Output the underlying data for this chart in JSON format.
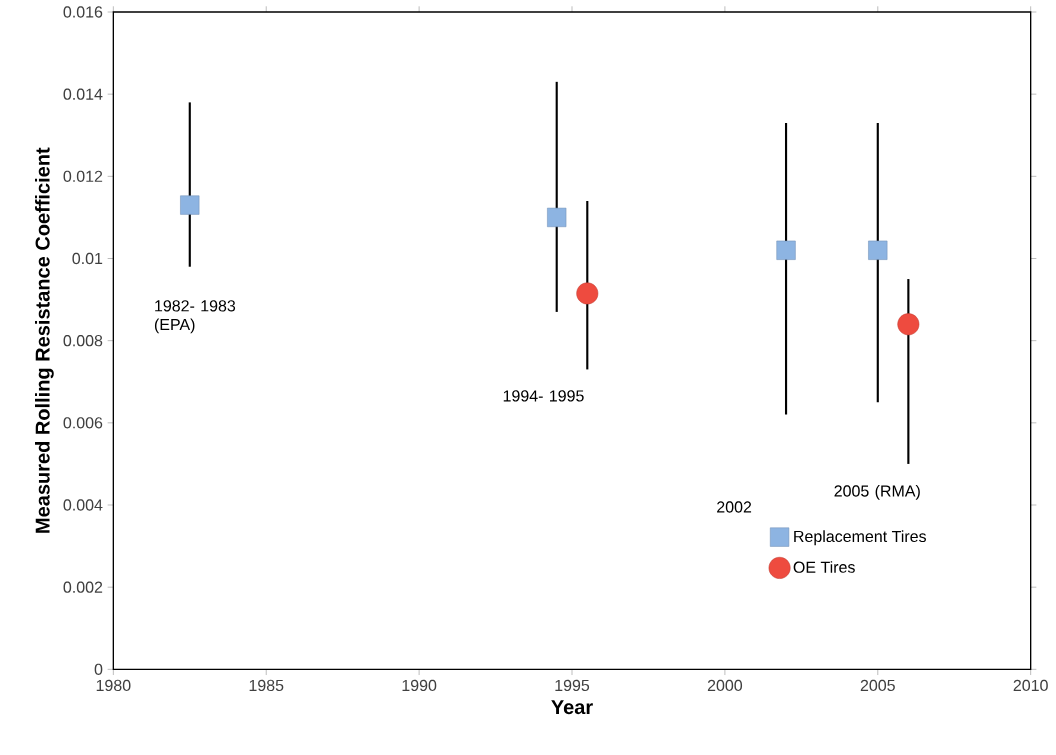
{
  "chart_data": {
    "type": "scatter",
    "xlabel": "Year",
    "ylabel": "Measured Rolling Resistance Coefficient",
    "xlim": [
      1980,
      2010
    ],
    "xticks": [
      1980,
      1985,
      1990,
      1995,
      2000,
      2005,
      2010
    ],
    "ylim": [
      0,
      0.016
    ],
    "yticks": [
      0,
      0.002,
      0.004,
      0.006,
      0.008,
      0.01,
      0.012,
      0.014,
      0.016
    ],
    "grid": false,
    "legend": "bottom right",
    "series": [
      {
        "name": "Replacement Tires",
        "color": "#8db4e2",
        "marker": "square",
        "x": [
          1982.5,
          1994.5,
          2002,
          2005
        ],
        "values": [
          0.0113,
          0.011,
          0.0102,
          0.0102
        ],
        "errors": [
          [
            0.0098,
            0.0138
          ],
          [
            0.0087,
            0.0143
          ],
          [
            0.0062,
            0.0133
          ],
          [
            0.0065,
            0.0133
          ]
        ]
      },
      {
        "name": "OE Tires",
        "color": "#ee4b3f",
        "marker": "circle",
        "x": [
          1995.5,
          2006
        ],
        "values": [
          0.00915,
          0.0084
        ],
        "errors": [
          [
            0.0073,
            0.0114
          ],
          [
            0.005,
            0.0095
          ]
        ]
      }
    ],
    "annotations": [
      "1982- 1983 (EPA)",
      "1994- 1995",
      "2002",
      "2005 (RMA)"
    ]
  }
}
